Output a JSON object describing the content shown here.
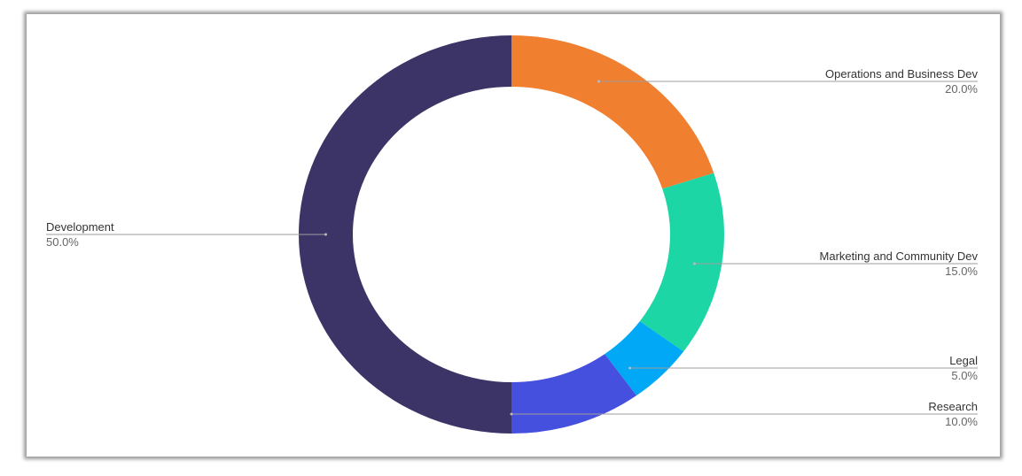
{
  "chart_data": {
    "type": "pie",
    "donut": true,
    "title": "",
    "start_angle": "top",
    "direction": "clockwise",
    "slices": [
      {
        "label": "Operations and Business Dev",
        "value": 20.0,
        "pct_label": "20.0%",
        "color": "#F07F2F"
      },
      {
        "label": "Marketing and Community Dev",
        "value": 15.0,
        "pct_label": "15.0%",
        "color": "#1DD6A5"
      },
      {
        "label": "Legal",
        "value": 5.0,
        "pct_label": "5.0%",
        "color": "#00A8F5"
      },
      {
        "label": "Research",
        "value": 10.0,
        "pct_label": "10.0%",
        "color": "#4650DE"
      },
      {
        "label": "Development",
        "value": 50.0,
        "pct_label": "50.0%",
        "color": "#3C3466"
      }
    ]
  }
}
